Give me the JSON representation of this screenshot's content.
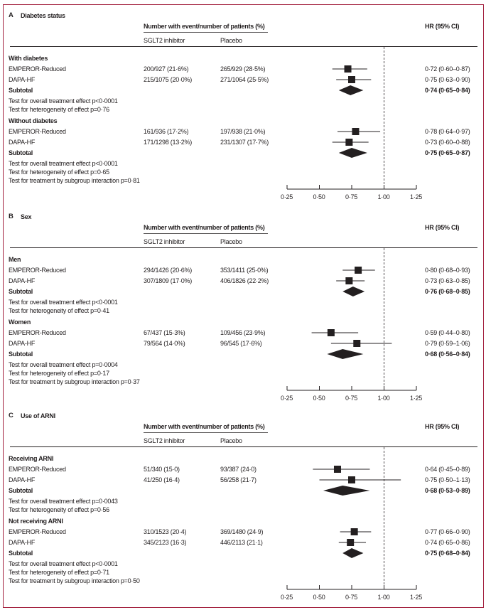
{
  "chart_data": {
    "type": "forest",
    "xlim": [
      0.25,
      1.25
    ],
    "xticks": [
      0.25,
      0.5,
      0.75,
      1.0,
      1.25
    ],
    "xtick_labels": [
      "0·25",
      "0·50",
      "0·75",
      "1·00",
      "1·25"
    ],
    "reference_line": 1.0,
    "header": {
      "events": "Number with event/number of patients (%)",
      "sglt2": "SGLT2 inhibitor",
      "placebo": "Placebo",
      "hr": "HR (95% CI)"
    },
    "panels": [
      {
        "letter": "A",
        "title": "Diabetes status",
        "groups": [
          {
            "label": "With diabetes",
            "studies": [
              {
                "name": "EMPEROR-Reduced",
                "sglt2": "200/927 (21·6%)",
                "placebo": "265/929 (28·5%)",
                "hr": 0.72,
                "lo": 0.6,
                "hi": 0.87,
                "hr_text": "0·72 (0·60–0·87)"
              },
              {
                "name": "DAPA-HF",
                "sglt2": "215/1075 (20·0%)",
                "placebo": "271/1064 (25·5%)",
                "hr": 0.75,
                "lo": 0.63,
                "hi": 0.9,
                "hr_text": "0·75 (0·63–0·90)"
              }
            ],
            "subtotal": {
              "label": "Subtotal",
              "hr": 0.74,
              "lo": 0.65,
              "hi": 0.84,
              "hr_text": "0·74 (0·65–0·84)"
            },
            "tests": [
              "Test for overall treatment effect p<0·0001",
              "Test for heterogeneity of effect p=0·76"
            ]
          },
          {
            "label": "Without diabetes",
            "studies": [
              {
                "name": "EMPEROR-Reduced",
                "sglt2": "161/936 (17·2%)",
                "placebo": "197/938 (21·0%)",
                "hr": 0.78,
                "lo": 0.64,
                "hi": 0.97,
                "hr_text": "0·78 (0·64–0·97)"
              },
              {
                "name": "DAPA-HF",
                "sglt2": "171/1298 (13·2%)",
                "placebo": "231/1307 (17·7%)",
                "hr": 0.73,
                "lo": 0.6,
                "hi": 0.88,
                "hr_text": "0·73 (0·60–0·88)"
              }
            ],
            "subtotal": {
              "label": "Subtotal",
              "hr": 0.75,
              "lo": 0.65,
              "hi": 0.87,
              "hr_text": "0·75 (0·65–0·87)"
            },
            "tests": [
              "Test for overall treatment effect p<0·0001",
              "Test for heterogeneity of effect p=0·65",
              "Test for treatment by subgroup interaction p=0·81"
            ]
          }
        ]
      },
      {
        "letter": "B",
        "title": "Sex",
        "groups": [
          {
            "label": "Men",
            "studies": [
              {
                "name": "EMPEROR-Reduced",
                "sglt2": "294/1426 (20·6%)",
                "placebo": "353/1411 (25·0%)",
                "hr": 0.8,
                "lo": 0.68,
                "hi": 0.93,
                "hr_text": "0·80 (0·68–0·93)"
              },
              {
                "name": "DAPA-HF",
                "sglt2": "307/1809 (17·0%)",
                "placebo": "406/1826 (22·2%)",
                "hr": 0.73,
                "lo": 0.63,
                "hi": 0.85,
                "hr_text": "0·73 (0·63–0·85)"
              }
            ],
            "subtotal": {
              "label": "Subtotal",
              "hr": 0.76,
              "lo": 0.68,
              "hi": 0.85,
              "hr_text": "0·76 (0·68–0·85)"
            },
            "tests": [
              "Test for overall treatment effect p<0·0001",
              "Test for heterogeneity of effect p=0·41"
            ]
          },
          {
            "label": "Women",
            "studies": [
              {
                "name": "EMPEROR-Reduced",
                "sglt2": "67/437 (15·3%)",
                "placebo": "109/456 (23·9%)",
                "hr": 0.59,
                "lo": 0.44,
                "hi": 0.8,
                "hr_text": "0·59 (0·44–0·80)"
              },
              {
                "name": "DAPA-HF",
                "sglt2": "79/564 (14·0%)",
                "placebo": "96/545 (17·6%)",
                "hr": 0.79,
                "lo": 0.59,
                "hi": 1.06,
                "hr_text": "0·79 (0·59–1·06)"
              }
            ],
            "subtotal": {
              "label": "Subtotal",
              "hr": 0.68,
              "lo": 0.56,
              "hi": 0.84,
              "hr_text": "0·68 (0·56–0·84)"
            },
            "tests": [
              "Test for overall treatment effect p=0·0004",
              "Test for heterogeneity of effect p=0·17",
              "Test for treatment by subgroup interaction p=0·37"
            ]
          }
        ]
      },
      {
        "letter": "C",
        "title": "Use of ARNI",
        "groups": [
          {
            "label": "Receiving ARNI",
            "studies": [
              {
                "name": "EMPEROR-Reduced",
                "sglt2": "51/340 (15·0)",
                "placebo": "93/387 (24·0)",
                "hr": 0.64,
                "lo": 0.45,
                "hi": 0.89,
                "hr_text": "0·64 (0·45–0·89)"
              },
              {
                "name": "DAPA-HF",
                "sglt2": "41/250 (16·4)",
                "placebo": "56/258 (21·7)",
                "hr": 0.75,
                "lo": 0.5,
                "hi": 1.13,
                "hr_text": "0·75 (0·50–1·13)"
              }
            ],
            "subtotal": {
              "label": "Subtotal",
              "hr": 0.68,
              "lo": 0.53,
              "hi": 0.89,
              "hr_text": "0·68 (0·53–0·89)"
            },
            "tests": [
              "Test for overall treatment effect p=0·0043",
              "Test for heterogeneity of effect p=0·56"
            ]
          },
          {
            "label": "Not receiving ARNI",
            "studies": [
              {
                "name": "EMPEROR-Reduced",
                "sglt2": "310/1523 (20·4)",
                "placebo": "369/1480 (24·9)",
                "hr": 0.77,
                "lo": 0.66,
                "hi": 0.9,
                "hr_text": "0·77 (0·66–0·90)"
              },
              {
                "name": "DAPA-HF",
                "sglt2": "345/2123 (16·3)",
                "placebo": "446/2113 (21·1)",
                "hr": 0.74,
                "lo": 0.65,
                "hi": 0.86,
                "hr_text": "0·74 (0·65–0·86)"
              }
            ],
            "subtotal": {
              "label": "Subtotal",
              "hr": 0.75,
              "lo": 0.68,
              "hi": 0.84,
              "hr_text": "0·75 (0·68–0·84)"
            },
            "tests": [
              "Test for overall treatment effect p<0·0001",
              "Test for heterogeneity of effect p=0·71",
              "Test for treatment by subgroup interaction p=0·50"
            ]
          }
        ]
      }
    ]
  }
}
